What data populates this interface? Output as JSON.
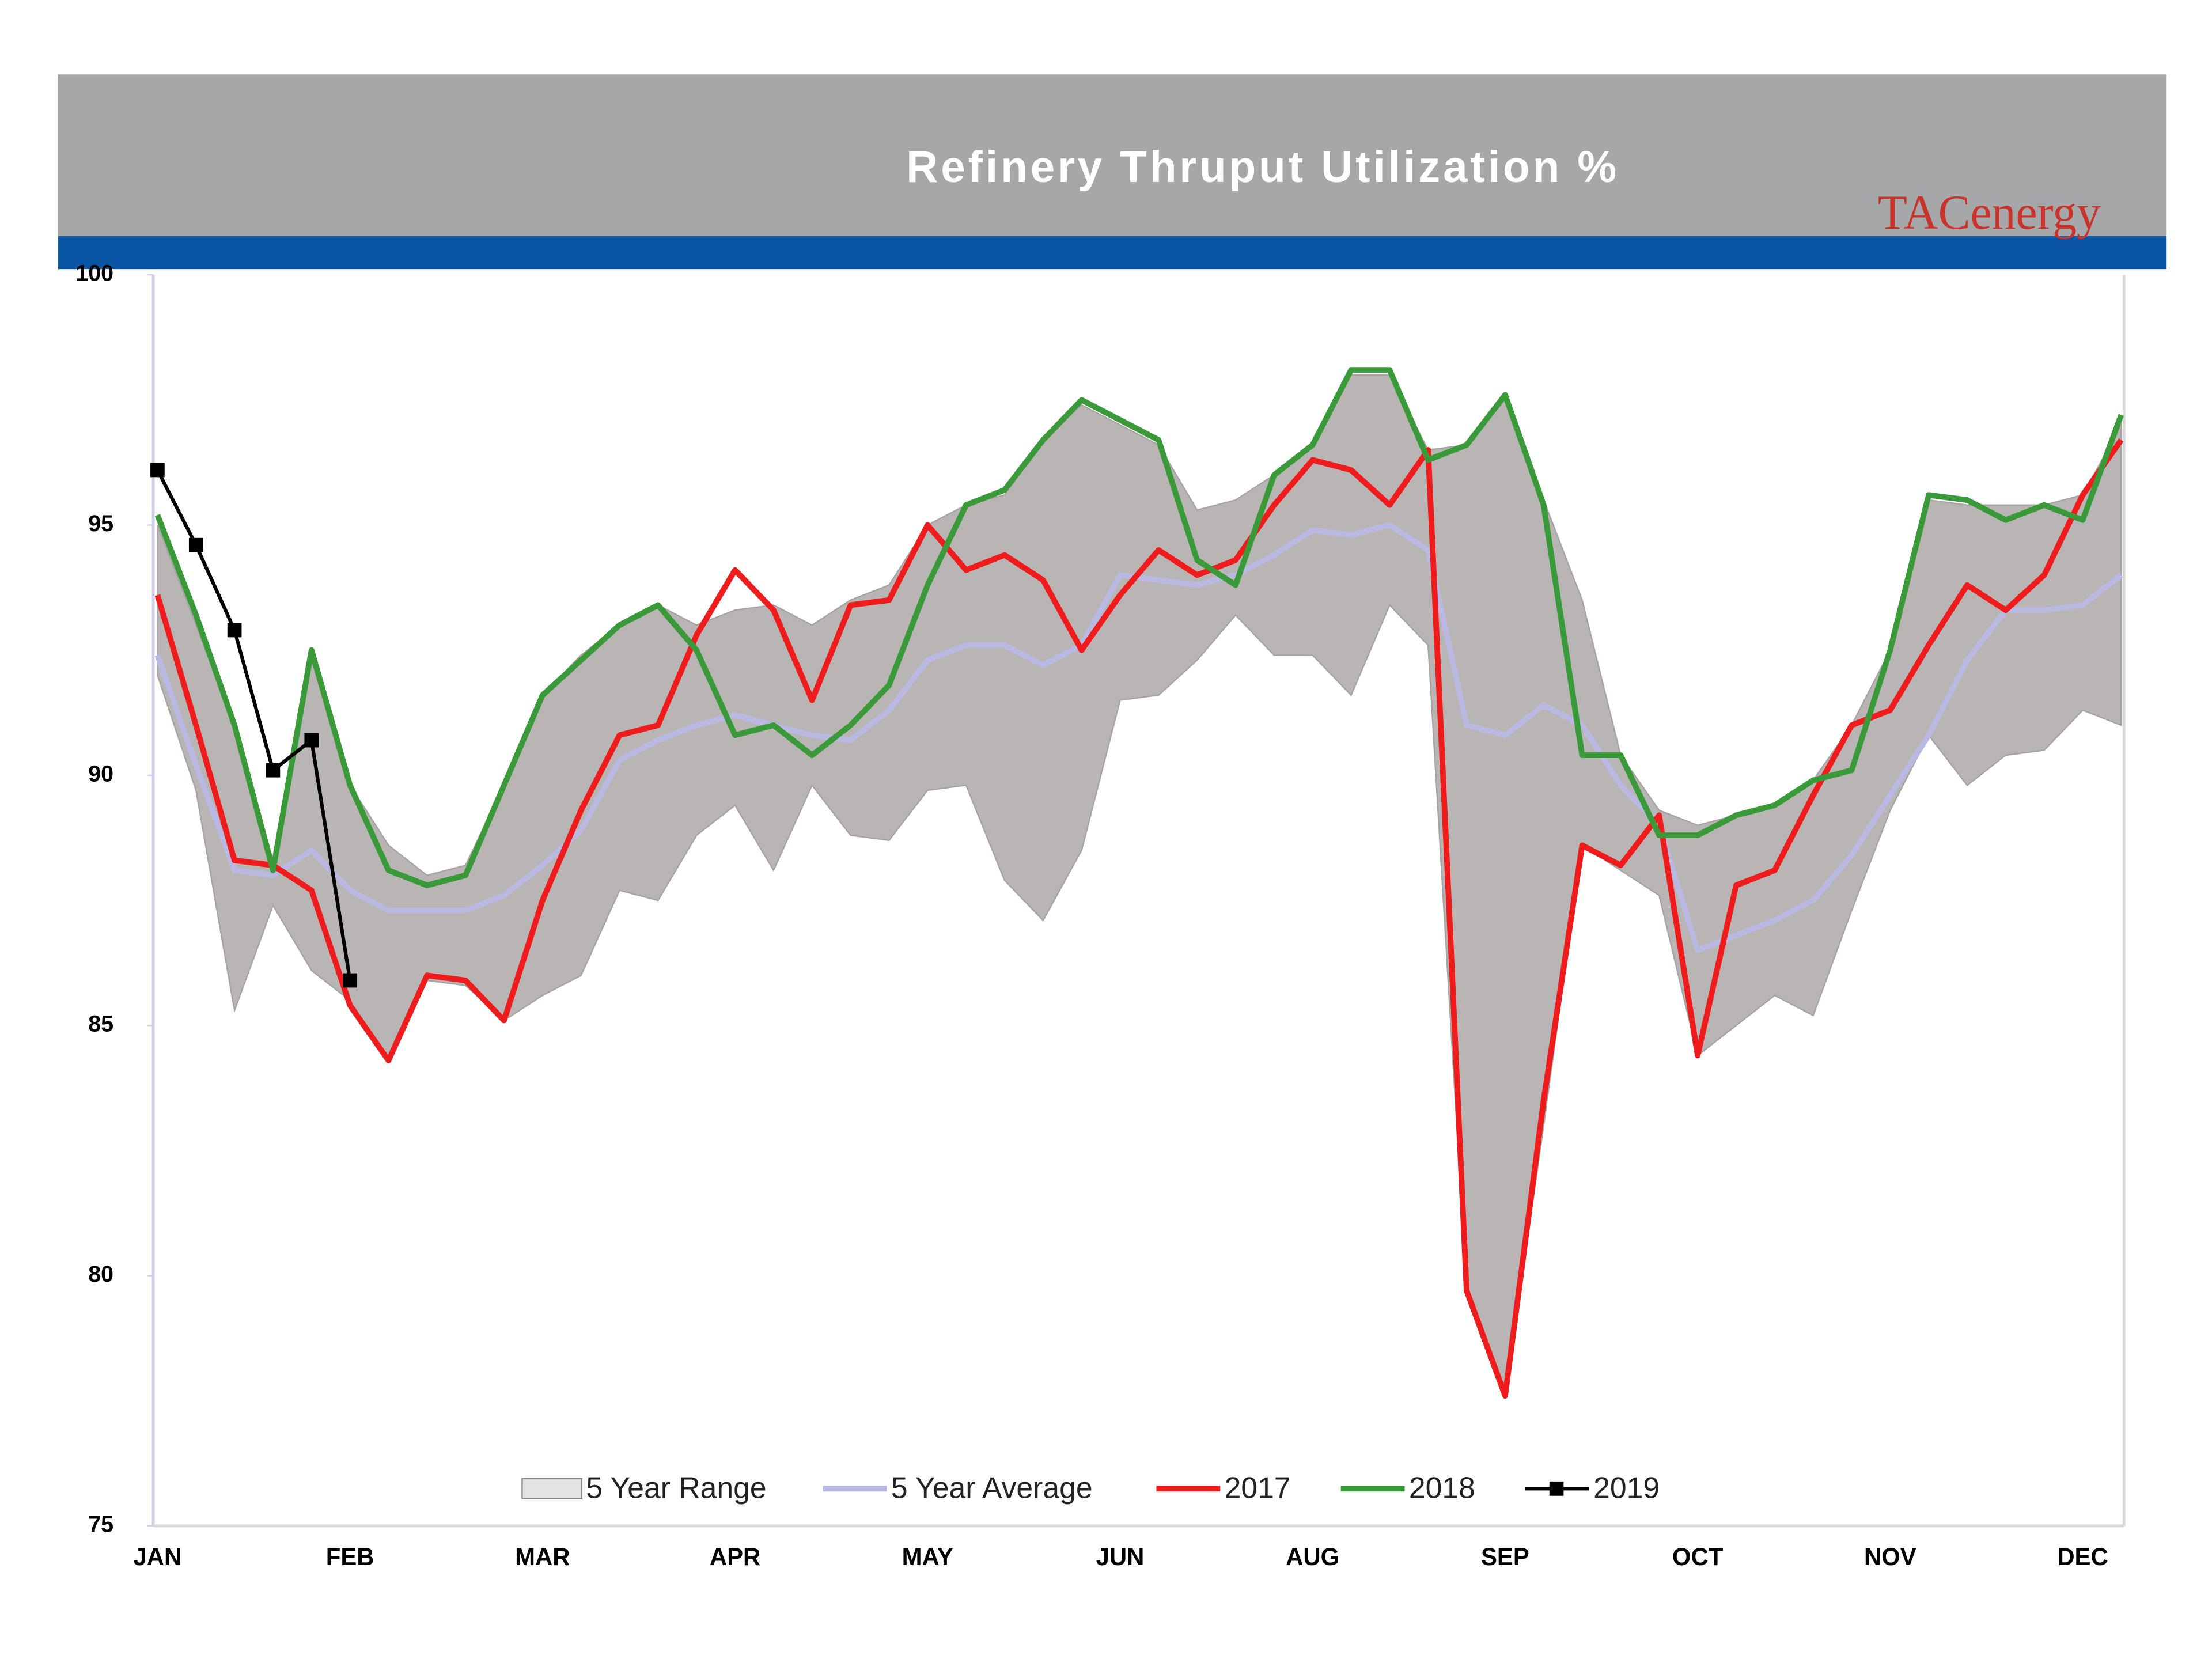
{
  "chart_data": {
    "type": "line",
    "title": "Refinery Thruput Utilization %",
    "logo": "TACenergy",
    "categories": [
      "JAN",
      null,
      null,
      null,
      null,
      "FEB",
      null,
      null,
      null,
      null,
      "MAR",
      null,
      null,
      null,
      null,
      "APR",
      null,
      null,
      null,
      null,
      "MAY",
      null,
      null,
      null,
      null,
      "JUN",
      null,
      null,
      null,
      null,
      "AUG",
      null,
      null,
      null,
      null,
      "SEP",
      null,
      null,
      null,
      null,
      "OCT",
      null,
      null,
      null,
      null,
      "NOV",
      null,
      null,
      null,
      null,
      "DEC",
      null
    ],
    "ylim": [
      75,
      100
    ],
    "yticks": [
      75,
      80,
      85,
      90,
      95,
      100
    ],
    "grid": false,
    "legend": "bottom",
    "series": [
      {
        "name": "5 Year Range",
        "color": "#b9b5b5",
        "values": [
          95.0,
          93.0,
          91.0,
          88.3,
          92.3,
          89.8,
          88.6,
          88.0,
          88.2,
          89.8,
          91.6,
          92.4,
          93.0,
          93.4,
          93.0,
          93.3,
          93.4,
          93.0,
          93.5,
          93.8,
          95.0,
          95.4,
          95.6,
          96.7,
          97.4,
          97.0,
          96.6,
          95.3,
          95.5,
          96.0,
          96.6,
          98.0,
          98.0,
          96.5,
          96.6,
          97.5,
          95.5,
          93.5,
          90.4,
          89.3,
          89.0,
          89.2,
          89.4,
          89.9,
          91.0,
          92.5,
          95.5,
          95.4,
          95.4,
          95.4,
          95.6,
          97.0
        ],
        "low": [
          92.0,
          89.7,
          85.3,
          87.4,
          86.1,
          85.5,
          84.3,
          85.9,
          85.8,
          85.1,
          85.6,
          86.0,
          87.7,
          87.5,
          88.8,
          89.4,
          88.1,
          89.8,
          88.8,
          88.7,
          89.7,
          89.8,
          87.9,
          87.1,
          88.5,
          91.5,
          91.6,
          92.3,
          93.2,
          92.4,
          92.4,
          91.6,
          93.4,
          92.6,
          79.7,
          77.6,
          83.0,
          88.6,
          88.1,
          87.6,
          84.4,
          85.0,
          85.6,
          85.2,
          87.3,
          89.3,
          90.8,
          89.8,
          90.4,
          90.5,
          91.3,
          91.0
        ]
      },
      {
        "name": "5 Year Average",
        "color": "#b8b8e0",
        "values": [
          92.4,
          90.2,
          88.1,
          88.0,
          88.5,
          87.7,
          87.3,
          87.3,
          87.3,
          87.6,
          88.2,
          88.9,
          90.3,
          90.7,
          91.0,
          91.2,
          91.0,
          90.8,
          90.7,
          91.3,
          92.3,
          92.6,
          92.6,
          92.2,
          92.6,
          94.0,
          93.9,
          93.8,
          94.0,
          94.4,
          94.9,
          94.8,
          95.0,
          94.5,
          91.0,
          90.8,
          91.4,
          91.0,
          89.8,
          89.0,
          86.5,
          86.8,
          87.1,
          87.5,
          88.4,
          89.6,
          90.8,
          92.3,
          93.3,
          93.3,
          93.4,
          94.0
        ]
      },
      {
        "name": "2017",
        "color": "#ee1c1c",
        "values": [
          93.6,
          91.0,
          88.3,
          88.2,
          87.7,
          85.4,
          84.3,
          86.0,
          85.9,
          85.1,
          87.5,
          89.3,
          90.8,
          91.0,
          92.8,
          94.1,
          93.3,
          91.5,
          93.4,
          93.5,
          95.0,
          94.1,
          94.4,
          93.9,
          92.5,
          93.6,
          94.5,
          94.0,
          94.3,
          95.4,
          96.3,
          96.1,
          95.4,
          96.5,
          79.7,
          77.6,
          83.5,
          88.6,
          88.2,
          89.2,
          84.4,
          87.8,
          88.1,
          89.6,
          91.0,
          91.3,
          92.6,
          93.8,
          93.3,
          94.0,
          95.6,
          96.7
        ]
      },
      {
        "name": "2018",
        "color": "#3a9a3a",
        "values": [
          95.2,
          93.2,
          91.0,
          88.1,
          92.5,
          89.8,
          88.1,
          87.8,
          88.0,
          89.8,
          91.6,
          92.3,
          93.0,
          93.4,
          92.5,
          90.8,
          91.0,
          90.4,
          91.0,
          91.8,
          93.8,
          95.4,
          95.7,
          96.7,
          97.5,
          97.1,
          96.7,
          94.3,
          93.8,
          96.0,
          96.6,
          98.1,
          98.1,
          96.3,
          96.6,
          97.6,
          95.4,
          90.4,
          90.4,
          88.8,
          88.8,
          89.2,
          89.4,
          89.9,
          90.1,
          92.5,
          95.6,
          95.5,
          95.1,
          95.4,
          95.1,
          97.2
        ]
      },
      {
        "name": "2019",
        "color": "#000000",
        "marker": "square",
        "values": [
          96.1,
          94.6,
          92.9,
          90.1,
          90.7,
          85.9,
          null,
          null,
          null,
          null,
          null,
          null,
          null,
          null,
          null,
          null,
          null,
          null,
          null,
          null,
          null,
          null,
          null,
          null,
          null,
          null,
          null,
          null,
          null,
          null,
          null,
          null,
          null,
          null,
          null,
          null,
          null,
          null,
          null,
          null,
          null,
          null,
          null,
          null,
          null,
          null,
          null,
          null,
          null,
          null,
          null,
          null
        ]
      }
    ]
  }
}
